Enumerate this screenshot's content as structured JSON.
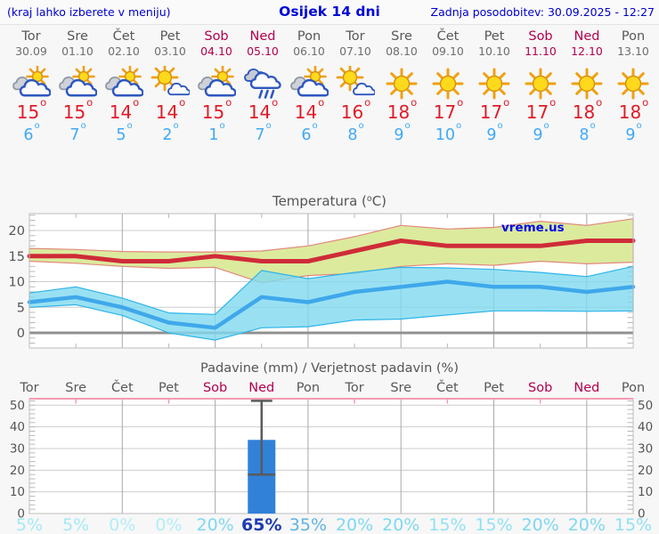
{
  "header": {
    "note": "(kraj lahko izberete v meniju)",
    "title": "Osijek 14 dni",
    "updated": "Zadnja posodobitev: 30.09.2025 - 12:27"
  },
  "watermark": "vreme.us",
  "colors": {
    "link_blue": "#0000cc",
    "weekday_gray": "#58585a",
    "weekend_red": "#b3004d",
    "tmax_red": "#e11b28",
    "tmin_blue": "#3fa9f5",
    "page_bg": "#f7f7f7",
    "plot_bg": "#ffffff",
    "plot_frame": "#bdbdbd",
    "grid_h": "#cdcdcd",
    "grid_v": "#a8a8a8",
    "tick": "#b8b8b8",
    "axis_text": "#555555",
    "temp_max_line": "#cf2b38",
    "temp_max_band": "#dcea9e",
    "temp_max_band_edge": "#e2887c",
    "temp_min_line": "#3fa8ea",
    "temp_min_band": "#7fd9ef",
    "temp_min_band_edge": "#2fb4e8",
    "zero_line": "#909090",
    "precip_bar": "#3181d9",
    "whisker": "#5a5a5a",
    "precip_top_border": "#f49ab4",
    "watermark_blue": "#0008e8"
  },
  "forecast": {
    "days": [
      {
        "name": "Tor",
        "date": "30.09",
        "weekend": false,
        "icon": "partly-cloudy",
        "tmax": 15,
        "tmin": 6
      },
      {
        "name": "Sre",
        "date": "01.10",
        "weekend": false,
        "icon": "partly-cloudy",
        "tmax": 15,
        "tmin": 7
      },
      {
        "name": "Čet",
        "date": "02.10",
        "weekend": false,
        "icon": "partly-cloudy",
        "tmax": 14,
        "tmin": 5
      },
      {
        "name": "Pet",
        "date": "03.10",
        "weekend": false,
        "icon": "mostly-sunny",
        "tmax": 14,
        "tmin": 2
      },
      {
        "name": "Sob",
        "date": "04.10",
        "weekend": true,
        "icon": "partly-cloudy",
        "tmax": 15,
        "tmin": 1
      },
      {
        "name": "Ned",
        "date": "05.10",
        "weekend": true,
        "icon": "rain",
        "tmax": 14,
        "tmin": 7
      },
      {
        "name": "Pon",
        "date": "06.10",
        "weekend": false,
        "icon": "partly-cloudy",
        "tmax": 14,
        "tmin": 6
      },
      {
        "name": "Tor",
        "date": "07.10",
        "weekend": false,
        "icon": "mostly-sunny",
        "tmax": 16,
        "tmin": 8
      },
      {
        "name": "Sre",
        "date": "08.10",
        "weekend": false,
        "icon": "sunny",
        "tmax": 18,
        "tmin": 9
      },
      {
        "name": "Čet",
        "date": "09.10",
        "weekend": false,
        "icon": "sunny",
        "tmax": 17,
        "tmin": 10
      },
      {
        "name": "Pet",
        "date": "10.10",
        "weekend": false,
        "icon": "sunny",
        "tmax": 17,
        "tmin": 9
      },
      {
        "name": "Sob",
        "date": "11.10",
        "weekend": true,
        "icon": "sunny",
        "tmax": 17,
        "tmin": 9
      },
      {
        "name": "Ned",
        "date": "12.10",
        "weekend": true,
        "icon": "sunny",
        "tmax": 18,
        "tmin": 8
      },
      {
        "name": "Pon",
        "date": "13.10",
        "weekend": false,
        "icon": "sunny",
        "tmax": 18,
        "tmin": 9
      }
    ]
  },
  "chart_data": [
    {
      "type": "line",
      "title": "Temperatura (°C)",
      "categories": [
        "Tor",
        "Sre",
        "Čet",
        "Pet",
        "Sob",
        "Ned",
        "Pon",
        "Tor",
        "Sre",
        "Čet",
        "Pet",
        "Sob",
        "Ned",
        "Pon"
      ],
      "weekend": [
        false,
        false,
        false,
        false,
        true,
        true,
        false,
        false,
        false,
        false,
        false,
        true,
        true,
        false
      ],
      "ylim": [
        -3,
        23.4
      ],
      "yticks": [
        0,
        5,
        10,
        15,
        20
      ],
      "grid": true,
      "legend": "none",
      "series": [
        {
          "name": "max_temp",
          "color": "#cf2b38",
          "width": 5,
          "values": [
            15,
            15,
            14,
            14,
            15,
            14,
            14,
            16,
            18,
            17,
            17,
            17,
            18,
            18
          ]
        },
        {
          "name": "min_temp",
          "color": "#3fa8ea",
          "width": 4.5,
          "values": [
            6,
            7,
            5,
            2,
            1,
            7,
            6,
            8,
            9,
            10,
            9,
            9,
            8,
            9
          ]
        }
      ],
      "bands": [
        {
          "name": "max_temp_range",
          "fill": "#dcea9e",
          "edge": "#e2887c",
          "opacity": 1,
          "upper": [
            16.5,
            16.3,
            15.9,
            15.8,
            15.8,
            16.0,
            17.0,
            18.8,
            21.0,
            20.3,
            20.6,
            21.8,
            21.0,
            22.3
          ],
          "lower": [
            14.0,
            13.6,
            13.0,
            12.6,
            12.8,
            9.8,
            11.2,
            11.6,
            13.0,
            13.5,
            13.2,
            14.0,
            13.5,
            13.8
          ]
        },
        {
          "name": "min_temp_range",
          "fill": "#7fd9ef",
          "edge": "#2fb4e8",
          "opacity": 0.8,
          "upper": [
            7.8,
            9.0,
            6.8,
            3.9,
            3.6,
            12.2,
            10.6,
            11.8,
            12.8,
            12.7,
            12.4,
            11.8,
            11.0,
            13.0
          ],
          "lower": [
            5.0,
            5.5,
            3.4,
            0.0,
            -1.4,
            1.0,
            1.2,
            2.5,
            2.7,
            3.5,
            4.3,
            4.3,
            4.2,
            4.3
          ]
        }
      ],
      "zero_line": 0,
      "watermark": "vreme.us"
    },
    {
      "type": "bar",
      "title": "Padavine (mm) / Verjetnost padavin (%)",
      "categories": [
        "Tor",
        "Sre",
        "Čet",
        "Pet",
        "Sob",
        "Ned",
        "Pon",
        "Tor",
        "Sre",
        "Čet",
        "Pet",
        "Sob",
        "Ned",
        "Pon"
      ],
      "weekend": [
        false,
        false,
        false,
        false,
        true,
        true,
        false,
        false,
        false,
        false,
        false,
        true,
        true,
        false
      ],
      "ylim": [
        0,
        53
      ],
      "yticks": [
        0,
        10,
        20,
        30,
        40,
        50
      ],
      "values": [
        0,
        0,
        0,
        0,
        0,
        34,
        0,
        0,
        0,
        0,
        0,
        0,
        0,
        0
      ],
      "bar_color": "#3181d9",
      "whisker": {
        "index": 5,
        "low": 18,
        "high": 52
      },
      "probabilities": [
        {
          "label": "5%",
          "color": "#a4e9f6",
          "emph": false
        },
        {
          "label": "5%",
          "color": "#a4e9f6",
          "emph": false
        },
        {
          "label": "0%",
          "color": "#b2edf8",
          "emph": false
        },
        {
          "label": "0%",
          "color": "#b2edf8",
          "emph": false
        },
        {
          "label": "20%",
          "color": "#7ed8f0",
          "emph": false
        },
        {
          "label": "65%",
          "color": "#1d3cb2",
          "emph": true
        },
        {
          "label": "35%",
          "color": "#5fb2e4",
          "emph": false
        },
        {
          "label": "20%",
          "color": "#7ed8f0",
          "emph": false
        },
        {
          "label": "20%",
          "color": "#7ed8f0",
          "emph": false
        },
        {
          "label": "15%",
          "color": "#90e1f3",
          "emph": false
        },
        {
          "label": "15%",
          "color": "#90e1f3",
          "emph": false
        },
        {
          "label": "20%",
          "color": "#7ed8f0",
          "emph": false
        },
        {
          "label": "20%",
          "color": "#7ed8f0",
          "emph": false
        },
        {
          "label": "15%",
          "color": "#90e1f3",
          "emph": false
        }
      ]
    }
  ]
}
